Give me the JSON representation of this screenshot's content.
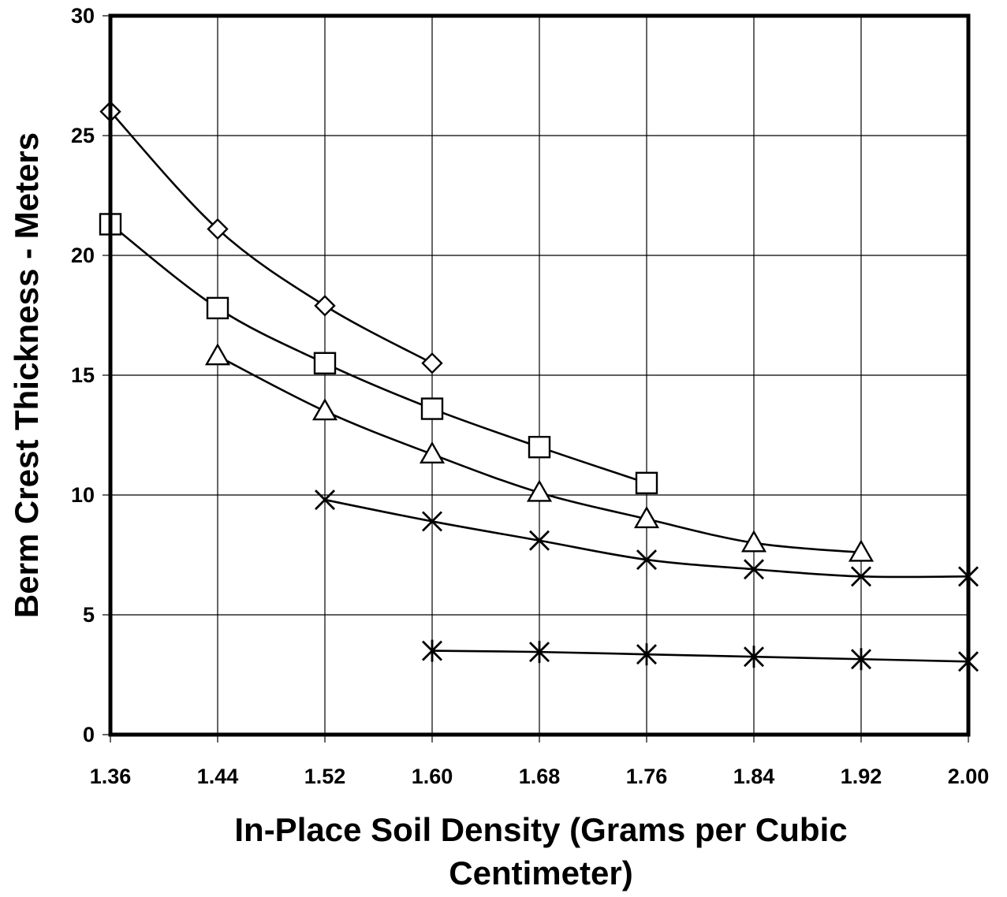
{
  "chart_data": {
    "type": "line",
    "title": "",
    "xlabel": "In-Place Soil Density (Grams per Cubic Centimeter)",
    "xlabel_lines": [
      "In-Place Soil Density (Grams per Cubic",
      "Centimeter)"
    ],
    "ylabel": "Berm Crest Thickness - Meters",
    "xlim": [
      1.36,
      2.0
    ],
    "ylim": [
      0,
      30
    ],
    "x_ticks": [
      "1.36",
      "1.44",
      "1.52",
      "1.60",
      "1.68",
      "1.76",
      "1.84",
      "1.92",
      "2.00"
    ],
    "y_ticks": [
      "0",
      "5",
      "10",
      "15",
      "20",
      "25",
      "30"
    ],
    "grid": true,
    "legend": "none",
    "series": [
      {
        "marker": "diamond",
        "x": [
          1.36,
          1.44,
          1.52,
          1.6
        ],
        "y": [
          26.0,
          21.1,
          17.9,
          15.5
        ]
      },
      {
        "marker": "square",
        "x": [
          1.36,
          1.44,
          1.52,
          1.6,
          1.68,
          1.76
        ],
        "y": [
          21.3,
          17.8,
          15.5,
          13.6,
          12.0,
          10.5
        ]
      },
      {
        "marker": "triangle",
        "x": [
          1.44,
          1.52,
          1.6,
          1.68,
          1.76,
          1.84,
          1.92
        ],
        "y": [
          15.8,
          13.5,
          11.7,
          10.1,
          9.0,
          8.0,
          7.6
        ]
      },
      {
        "marker": "x-star",
        "x": [
          1.52,
          1.6,
          1.68,
          1.76,
          1.84,
          1.92,
          2.0
        ],
        "y": [
          9.8,
          8.9,
          8.1,
          7.3,
          6.9,
          6.6,
          6.6
        ]
      },
      {
        "marker": "asterisk",
        "x": [
          1.6,
          1.68,
          1.76,
          1.84,
          1.92,
          2.0
        ],
        "y": [
          3.5,
          3.45,
          3.35,
          3.25,
          3.15,
          3.05
        ]
      }
    ]
  }
}
